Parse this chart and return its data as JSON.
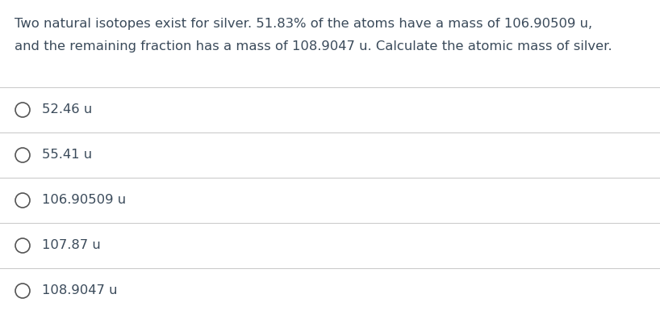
{
  "question_line1": "Two natural isotopes exist for silver. 51.83% of the atoms have a mass of 106.90509 u,",
  "question_line2": "and the remaining fraction has a mass of 108.9047 u. Calculate the atomic mass of silver.",
  "options": [
    "52.46 u",
    "55.41 u",
    "106.90509 u",
    "107.87 u",
    "108.9047 u"
  ],
  "background_color": "#ffffff",
  "text_color": "#3a4a5a",
  "line_color": "#cccccc",
  "circle_color": "#555555",
  "question_fontsize": 11.8,
  "option_fontsize": 11.8,
  "fig_width": 8.18,
  "fig_height": 3.85,
  "dpi": 100
}
